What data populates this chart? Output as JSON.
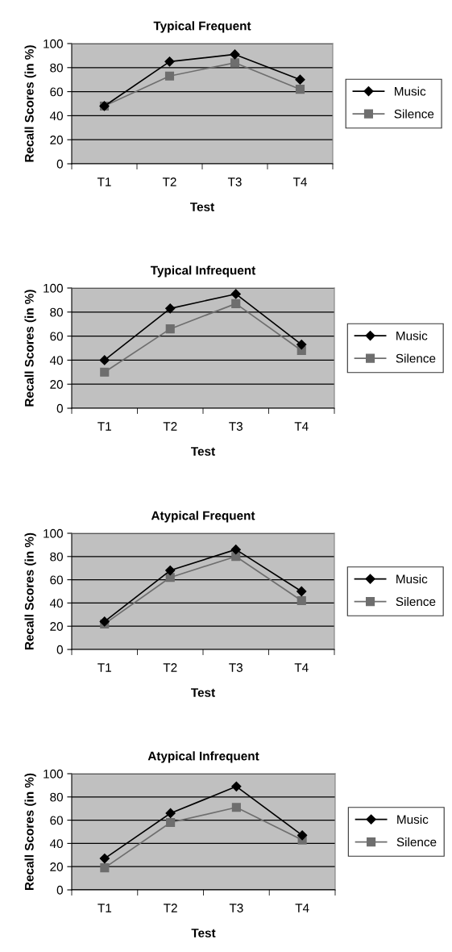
{
  "chart_data": [
    {
      "type": "line",
      "title": "Typical Frequent",
      "xlabel": "Test",
      "ylabel": "Recall Scores (in %)",
      "categories": [
        "T1",
        "T2",
        "T3",
        "T4"
      ],
      "ylim": [
        0,
        100
      ],
      "yticks": [
        0,
        20,
        40,
        60,
        80,
        100
      ],
      "grid": "y",
      "legend": "right",
      "series": [
        {
          "name": "Music",
          "color": "#000000",
          "marker": "diamond",
          "values": [
            48,
            85,
            91,
            70
          ]
        },
        {
          "name": "Silence",
          "color": "#6e6e6e",
          "marker": "square",
          "values": [
            48,
            73,
            84,
            62
          ]
        }
      ]
    },
    {
      "type": "line",
      "title": "Typical Infrequent",
      "xlabel": "Test",
      "ylabel": "Recall Scores (in %)",
      "categories": [
        "T1",
        "T2",
        "T3",
        "T4"
      ],
      "ylim": [
        0,
        100
      ],
      "yticks": [
        0,
        20,
        40,
        60,
        80,
        100
      ],
      "grid": "y",
      "legend": "right",
      "series": [
        {
          "name": "Music",
          "color": "#000000",
          "marker": "diamond",
          "values": [
            40,
            83,
            95,
            53
          ]
        },
        {
          "name": "Silence",
          "color": "#6e6e6e",
          "marker": "square",
          "values": [
            30,
            66,
            87,
            48
          ]
        }
      ]
    },
    {
      "type": "line",
      "title": "Atypical Frequent",
      "xlabel": "Test",
      "ylabel": "Recall Scores (in %)",
      "categories": [
        "T1",
        "T2",
        "T3",
        "T4"
      ],
      "ylim": [
        0,
        100
      ],
      "yticks": [
        0,
        20,
        40,
        60,
        80,
        100
      ],
      "grid": "y",
      "legend": "right",
      "series": [
        {
          "name": "Music",
          "color": "#000000",
          "marker": "diamond",
          "values": [
            24,
            68,
            86,
            50
          ]
        },
        {
          "name": "Silence",
          "color": "#6e6e6e",
          "marker": "square",
          "values": [
            22,
            62,
            80,
            42
          ]
        }
      ]
    },
    {
      "type": "line",
      "title": "Atypical Infrequent",
      "xlabel": "Test",
      "ylabel": "Recall Scores (in %)",
      "categories": [
        "T1",
        "T2",
        "T3",
        "T4"
      ],
      "ylim": [
        0,
        100
      ],
      "yticks": [
        0,
        20,
        40,
        60,
        80,
        100
      ],
      "grid": "y",
      "legend": "right",
      "series": [
        {
          "name": "Music",
          "color": "#000000",
          "marker": "diamond",
          "values": [
            27,
            66,
            89,
            47
          ]
        },
        {
          "name": "Silence",
          "color": "#6e6e6e",
          "marker": "square",
          "values": [
            19,
            58,
            71,
            43
          ]
        }
      ]
    }
  ]
}
